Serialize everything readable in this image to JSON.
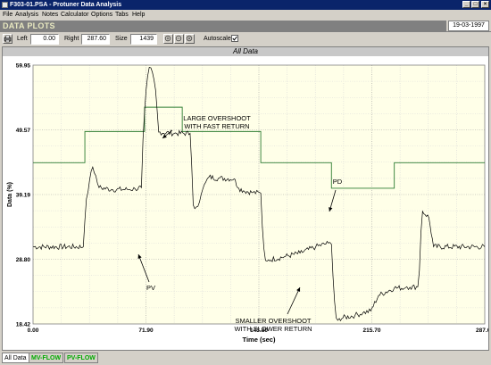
{
  "window": {
    "title": "F303-01.PSA - Protuner Data Analysis",
    "controls": [
      "_",
      "□",
      "×"
    ]
  },
  "menu": [
    "File",
    "Analysis",
    "Notes",
    "Calculator",
    "Options",
    "Tabs",
    "Help"
  ],
  "header": {
    "title": "DATA PLOTS",
    "date": "19-03-1997"
  },
  "toolbar": {
    "left_label": "Left",
    "left_value": "0.00",
    "right_label": "Right",
    "right_value": "287.60",
    "size_label": "Size",
    "size_value": "1439",
    "autoscale_label": "Autoscale",
    "autoscale_checked": true,
    "icons": [
      "zoom-in-icon",
      "zoom-out-icon",
      "zoom-full-icon"
    ]
  },
  "panel": {
    "title": "All Data"
  },
  "tabs": [
    {
      "label": "All Data",
      "active": true
    },
    {
      "label": "MV-FLOW",
      "active": false,
      "color": "#00aa00"
    },
    {
      "label": "PV-FLOW",
      "active": false,
      "color": "#00aa00"
    }
  ],
  "chart_data": {
    "type": "line",
    "title": "All Data",
    "xlabel": "Time (sec)",
    "ylabel": "Data (%)",
    "xlim": [
      0,
      287.6
    ],
    "ylim": [
      18.42,
      59.95
    ],
    "x_ticks": [
      "0.00",
      "71.90",
      "143.80",
      "215.70",
      "287.60"
    ],
    "y_ticks": [
      "18.42",
      "28.80",
      "39.19",
      "49.57",
      "59.95"
    ],
    "grid": true,
    "series": [
      {
        "name": "PD",
        "color": "#2e7d32",
        "step": true,
        "x": [
          0,
          33,
          71,
          95,
          145,
          190,
          230,
          287.6
        ],
        "values": [
          44.3,
          49.3,
          53.2,
          49.3,
          44.3,
          40.2,
          44.3,
          44.3
        ]
      },
      {
        "name": "PV",
        "color": "#000000",
        "x": [
          0,
          32,
          33,
          34,
          36,
          38,
          40,
          41,
          42,
          50,
          60,
          65,
          69,
          70,
          72,
          74,
          76,
          78,
          80,
          90,
          100,
          101,
          102,
          104,
          106,
          108,
          110,
          112,
          118,
          128,
          131,
          134,
          140,
          145,
          146,
          147,
          148,
          149,
          150,
          160,
          170,
          180,
          188,
          190,
          191,
          192,
          193,
          194,
          195,
          205,
          210,
          215,
          220,
          230,
          237,
          238,
          240,
          245,
          246,
          247,
          248,
          252,
          255,
          287.6
        ],
        "values": [
          30.8,
          30.8,
          35.0,
          38.5,
          41.5,
          43.6,
          42.2,
          41.0,
          40.3,
          40.0,
          40.0,
          40.1,
          40.3,
          48.0,
          56.0,
          59.6,
          58.8,
          56.0,
          49.2,
          49.0,
          49.0,
          44.0,
          37.5,
          37.2,
          38.0,
          40.0,
          41.2,
          42.0,
          41.8,
          41.7,
          40.2,
          39.8,
          39.5,
          39.4,
          34.0,
          30.5,
          28.6,
          28.5,
          28.7,
          29.2,
          29.8,
          30.8,
          31.4,
          31.2,
          26.0,
          22.0,
          19.4,
          19.0,
          19.3,
          19.8,
          20.2,
          20.5,
          23.0,
          24.2,
          24.2,
          24.4,
          24.3,
          24.4,
          27.0,
          33.2,
          36.5,
          35.5,
          30.8,
          30.8
        ]
      }
    ],
    "annotations": [
      {
        "lines": [
          "LARGE OVERSHOOT",
          "WITH FAST RETURN"
        ]
      },
      {
        "lines": [
          "PD"
        ]
      },
      {
        "lines": [
          "PV"
        ]
      },
      {
        "lines": [
          "SMALLER OVERSHOOT",
          "WITH SLOWER RETURN"
        ]
      }
    ]
  }
}
